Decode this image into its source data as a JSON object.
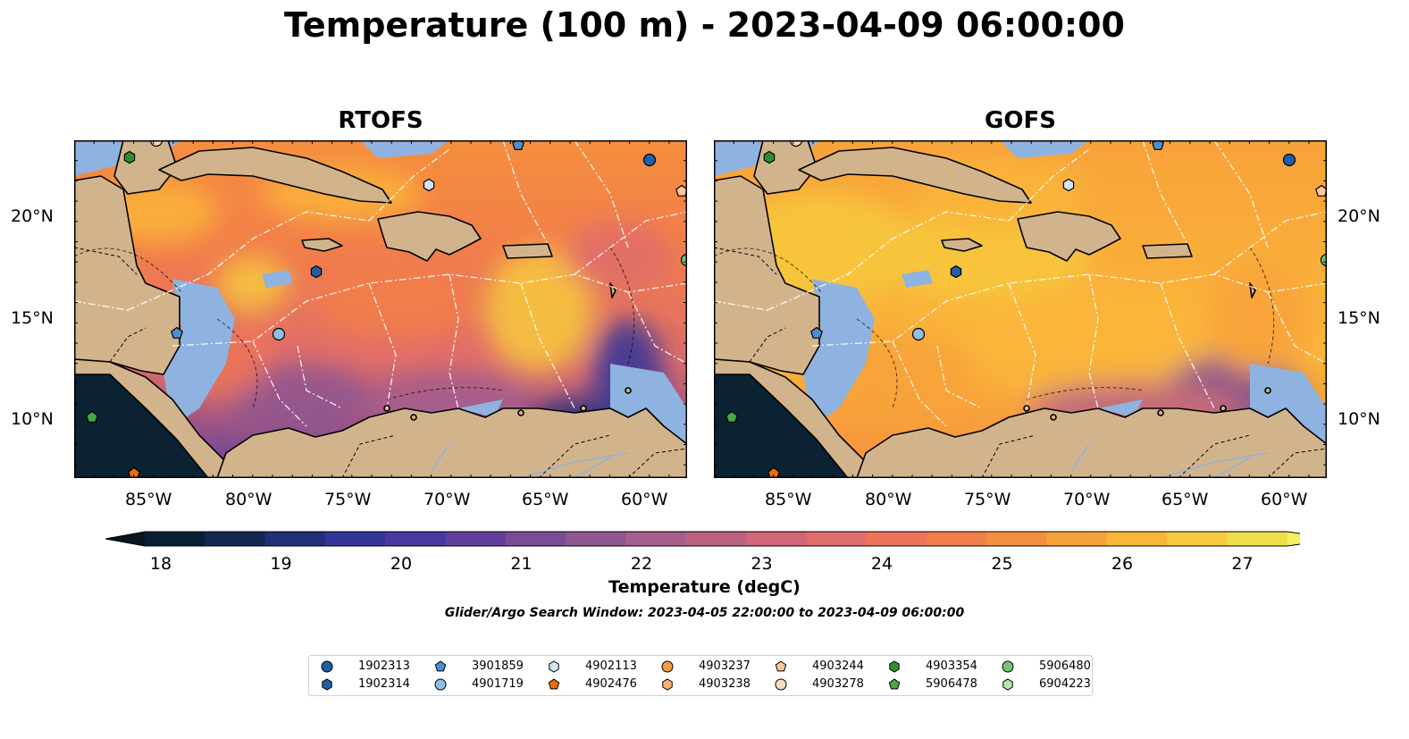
{
  "title": "Temperature (100 m) - 2023-04-09 06:00:00",
  "panels": [
    {
      "title": "RTOFS"
    },
    {
      "title": "GOFS"
    }
  ],
  "lon_ticks": [
    "85°W",
    "80°W",
    "75°W",
    "70°W",
    "65°W",
    "60°W"
  ],
  "lat_ticks": [
    "20°N",
    "15°N",
    "10°N"
  ],
  "colorbar": {
    "label": "Temperature (degC)",
    "ticks": [
      "18",
      "19",
      "20",
      "21",
      "22",
      "23",
      "24",
      "25",
      "26",
      "27"
    ],
    "colors": [
      "#0a1e33",
      "#12284e",
      "#222e78",
      "#33349a",
      "#4a38a2",
      "#623f9c",
      "#7a4c96",
      "#905690",
      "#a65e8c",
      "#bb6283",
      "#d16679",
      "#e06d6a",
      "#ec7458",
      "#f27f49",
      "#f58e3e",
      "#f8a23a",
      "#fab63a",
      "#f7c93e",
      "#eede4a"
    ]
  },
  "search_window": "Glider/Argo Search Window: 2023-04-05 22:00:00 to 2023-04-09 06:00:00",
  "legend": [
    {
      "id": "1902313",
      "marker": "circle",
      "color": "#1f5fa6"
    },
    {
      "id": "1902314",
      "marker": "hexagon",
      "color": "#1f5fa6"
    },
    {
      "id": "3901859",
      "marker": "pentagon",
      "color": "#4a8fd0"
    },
    {
      "id": "4901719",
      "marker": "circle",
      "color": "#8fbfe6"
    },
    {
      "id": "4902113",
      "marker": "hexagon",
      "color": "#cfe6f7"
    },
    {
      "id": "4902476",
      "marker": "pentagon",
      "color": "#ee6a0f"
    },
    {
      "id": "4903237",
      "marker": "circle",
      "color": "#f59a42"
    },
    {
      "id": "4903238",
      "marker": "hexagon",
      "color": "#f9b36f"
    },
    {
      "id": "4903244",
      "marker": "pentagon",
      "color": "#fac69a"
    },
    {
      "id": "4903278",
      "marker": "circle",
      "color": "#fcdcbf"
    },
    {
      "id": "4903354",
      "marker": "hexagon",
      "color": "#2d8f2d"
    },
    {
      "id": "5906478",
      "marker": "pentagon",
      "color": "#45a845"
    },
    {
      "id": "5906480",
      "marker": "circle",
      "color": "#73c473"
    },
    {
      "id": "6904223",
      "marker": "hexagon",
      "color": "#b6e3b0"
    }
  ],
  "colors": {
    "land": "#d2b48c",
    "shallow_water": "#8fb3e0",
    "deep_pacific": "#0b2233",
    "eez_lines": "#ffffff",
    "coastline": "#000000"
  }
}
